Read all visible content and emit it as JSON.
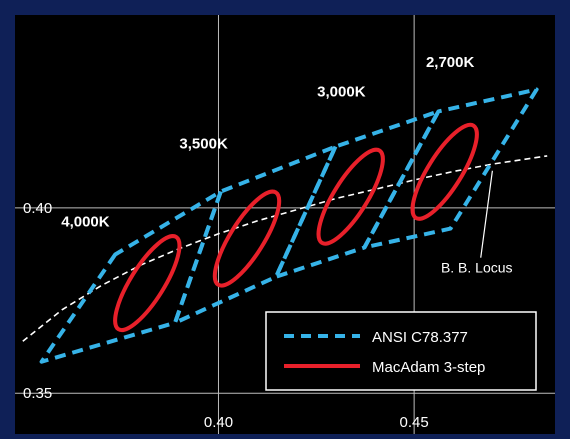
{
  "chart_data": {
    "type": "scatter",
    "title": "",
    "xlabel": "",
    "ylabel": "",
    "xlim": [
      0.348,
      0.486
    ],
    "ylim": [
      0.339,
      0.452
    ],
    "x_ticks": [
      {
        "value": 0.4,
        "label": "0.40"
      },
      {
        "value": 0.45,
        "label": "0.45"
      }
    ],
    "y_ticks": [
      {
        "value": 0.4,
        "label": "0.40"
      },
      {
        "value": 0.35,
        "label": "0.35"
      }
    ],
    "grid": true,
    "legend_position": "bottom-right",
    "legend": [
      {
        "name": "ANSI C78.377",
        "style": "dashed",
        "color": "#36b3e8"
      },
      {
        "name": "MacAdam 3-step",
        "style": "solid",
        "color": "#e8202a"
      }
    ],
    "series": [
      {
        "name": "ANSI C78.377",
        "kind": "quadrangles",
        "color": "#36b3e8",
        "items": [
          {
            "label": "4,000K",
            "points": [
              [
                0.3736,
                0.3874
              ],
              [
                0.3548,
                0.3585
              ],
              [
                0.3889,
                0.369
              ],
              [
                0.4006,
                0.4044
              ]
            ]
          },
          {
            "label": "3,500K",
            "points": [
              [
                0.4006,
                0.4044
              ],
              [
                0.3889,
                0.369
              ],
              [
                0.4147,
                0.3814
              ],
              [
                0.4299,
                0.4165
              ]
            ]
          },
          {
            "label": "3,000K",
            "points": [
              [
                0.4299,
                0.4165
              ],
              [
                0.4147,
                0.3814
              ],
              [
                0.4373,
                0.3893
              ],
              [
                0.4562,
                0.426
              ]
            ]
          },
          {
            "label": "2,700K",
            "points": [
              [
                0.4562,
                0.426
              ],
              [
                0.4373,
                0.3893
              ],
              [
                0.4593,
                0.3944
              ],
              [
                0.4813,
                0.4319
              ]
            ]
          }
        ]
      },
      {
        "name": "MacAdam 3-step",
        "kind": "ellipses",
        "color": "#e8202a",
        "items": [
          {
            "label": "4,000K",
            "cx": 0.3818,
            "cy": 0.3797,
            "rx": 0.0139,
            "ry": 0.0043,
            "angle": -58
          },
          {
            "label": "3,500K",
            "cx": 0.4073,
            "cy": 0.3917,
            "rx": 0.0139,
            "ry": 0.0043,
            "angle": -58
          },
          {
            "label": "3,000K",
            "cx": 0.4338,
            "cy": 0.403,
            "rx": 0.0139,
            "ry": 0.0043,
            "angle": -58
          },
          {
            "label": "2,700K",
            "cx": 0.4578,
            "cy": 0.4097,
            "rx": 0.0139,
            "ry": 0.0043,
            "angle": -58
          }
        ]
      },
      {
        "name": "B. B. Locus",
        "kind": "curve",
        "color": "#ffffff",
        "points": [
          [
            0.35,
            0.364
          ],
          [
            0.36,
            0.3725
          ],
          [
            0.37,
            0.379
          ],
          [
            0.38,
            0.3845
          ],
          [
            0.39,
            0.389
          ],
          [
            0.4,
            0.393
          ],
          [
            0.41,
            0.3965
          ],
          [
            0.42,
            0.3995
          ],
          [
            0.43,
            0.4025
          ],
          [
            0.44,
            0.405
          ],
          [
            0.45,
            0.4075
          ],
          [
            0.46,
            0.4098
          ],
          [
            0.47,
            0.4118
          ],
          [
            0.484,
            0.414
          ]
        ]
      }
    ],
    "annotations": [
      {
        "text": "4,000K",
        "x": 0.366,
        "y": 0.395
      },
      {
        "text": "3,500K",
        "x": 0.3962,
        "y": 0.416
      },
      {
        "text": "3,000K",
        "x": 0.4314,
        "y": 0.43
      },
      {
        "text": "2,700K",
        "x": 0.4592,
        "y": 0.438
      },
      {
        "text": "B. B. Locus",
        "x": 0.466,
        "y": 0.3825,
        "pointer": [
          0.47,
          0.41
        ]
      }
    ]
  }
}
